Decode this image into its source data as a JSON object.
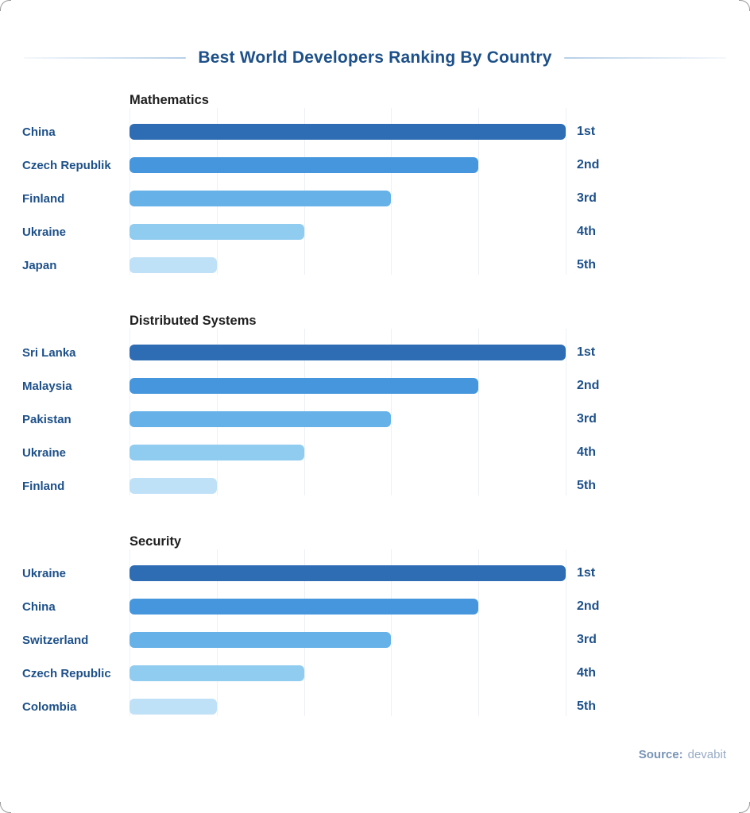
{
  "page": {
    "title": "Best World Developers Ranking By Country",
    "source_label": "Source:",
    "source_value": "devabit"
  },
  "colors": {
    "title_text": "#1d5089",
    "country_label_text": "#1d5089",
    "section_title_text": "#1f1f1f",
    "gridline": "#ecf1f6",
    "divider_line": "#b6cfe8",
    "rank1_bar": "#2e6db4",
    "rank2_bar": "#4596dd",
    "rank3_bar": "#66b1e8",
    "rank4_bar": "#90cbf0",
    "rank5_bar": "#bfe1f7",
    "source_label_text": "#7793b6",
    "source_value_text": "#97abc6"
  },
  "chart_data": [
    {
      "type": "bar",
      "orientation": "horizontal",
      "title": "Mathematics",
      "categories": [
        "China",
        "Czech Republik",
        "Finland",
        "Ukraine",
        "Japan"
      ],
      "values": [
        100,
        80,
        60,
        40,
        20
      ],
      "rank_labels": [
        "1st",
        "2nd",
        "3rd",
        "4th",
        "5th"
      ],
      "xlim": [
        0,
        100
      ],
      "grid": true,
      "legend": false
    },
    {
      "type": "bar",
      "orientation": "horizontal",
      "title": "Distributed Systems",
      "categories": [
        "Sri Lanka",
        "Malaysia",
        "Pakistan",
        "Ukraine",
        "Finland"
      ],
      "values": [
        100,
        80,
        60,
        40,
        20
      ],
      "rank_labels": [
        "1st",
        "2nd",
        "3rd",
        "4th",
        "5th"
      ],
      "xlim": [
        0,
        100
      ],
      "grid": true,
      "legend": false
    },
    {
      "type": "bar",
      "orientation": "horizontal",
      "title": "Security",
      "categories": [
        "Ukraine",
        "China",
        "Switzerland",
        "Czech Republic",
        "Colombia"
      ],
      "values": [
        100,
        80,
        60,
        40,
        20
      ],
      "rank_labels": [
        "1st",
        "2nd",
        "3rd",
        "4th",
        "5th"
      ],
      "xlim": [
        0,
        100
      ],
      "grid": true,
      "legend": false
    }
  ]
}
